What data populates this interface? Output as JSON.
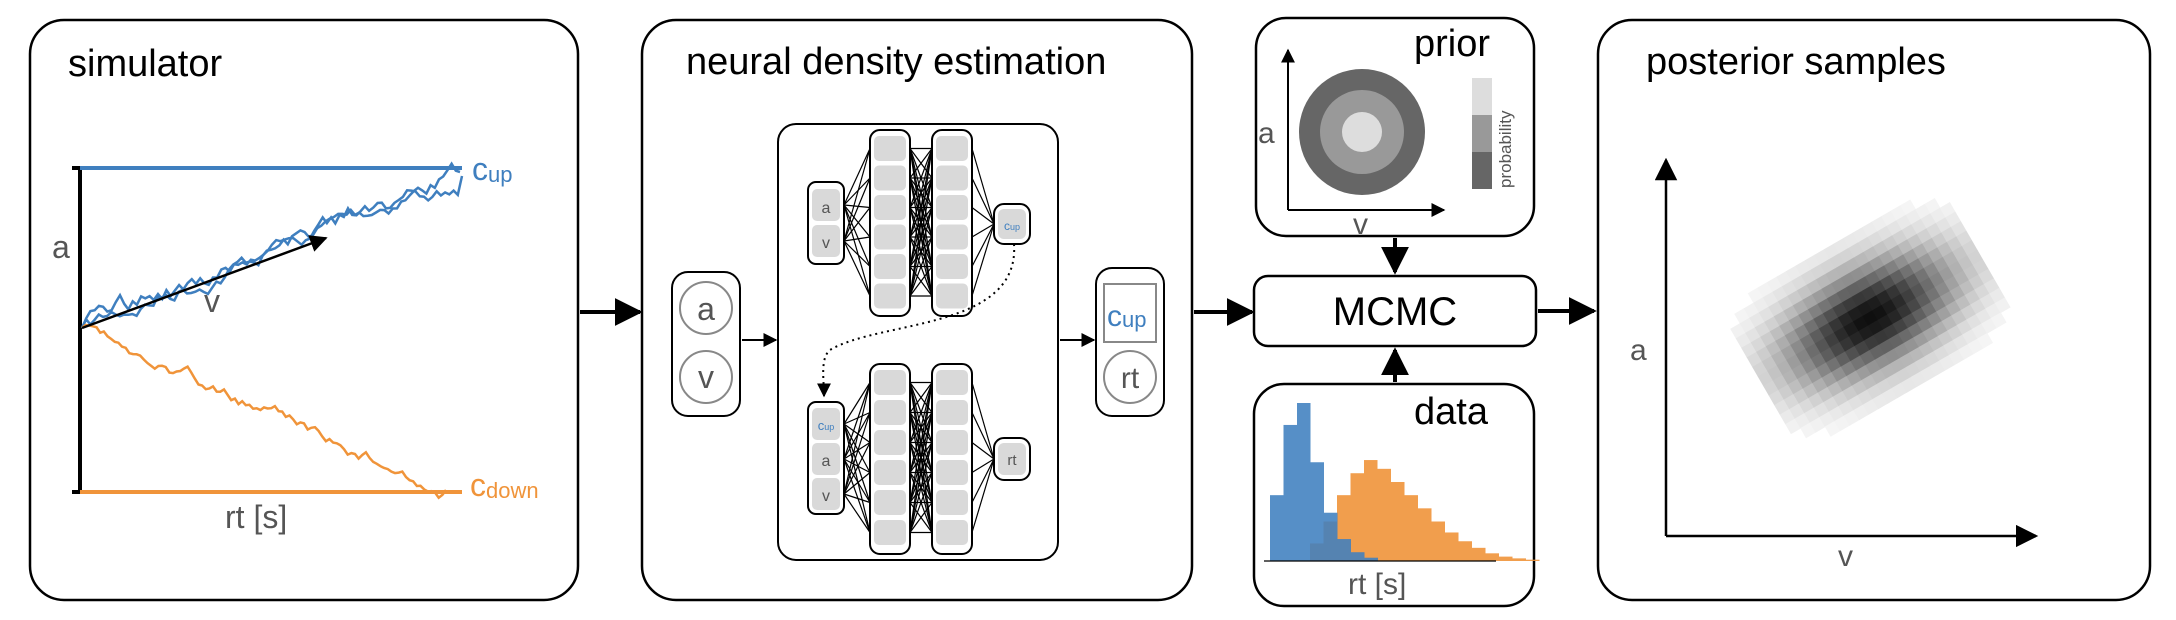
{
  "panels": {
    "simulator": {
      "title": "simulator",
      "label_a": "a",
      "label_v": "v",
      "label_rt": "rt [s]",
      "c_up": "c",
      "c_up_sub": "up",
      "c_down": "c",
      "c_down_sub": "down"
    },
    "nde": {
      "title": "neural density estimation",
      "in_a": "a",
      "in_v": "v",
      "net_a": "a",
      "net_v": "v",
      "net_cup": "c",
      "net_cup_sub": "up",
      "net2_cup": "c",
      "net2_cup_sub": "up",
      "net2_a": "a",
      "net2_v": "v",
      "net2_rt": "rt",
      "out_cup": "c",
      "out_cup_sub": "up",
      "out_rt": "rt"
    },
    "prior": {
      "title": "prior",
      "label_a": "a",
      "label_v": "v",
      "colorbar_label": "probability"
    },
    "mcmc": {
      "label": "MCMC"
    },
    "data": {
      "title": "data",
      "label_rt": "rt [s]"
    },
    "posterior": {
      "title": "posterior samples",
      "label_a": "a",
      "label_v": "v"
    }
  },
  "colors": {
    "blue": "#3f7fbf",
    "orange": "#f0943a",
    "gray_node": "#d9d9d9"
  },
  "data_hist": {
    "blue": [
      0.3,
      0.62,
      0.72,
      0.45,
      0.22,
      0.1,
      0.04,
      0.015
    ],
    "orange": [
      0.08,
      0.18,
      0.3,
      0.4,
      0.46,
      0.42,
      0.36,
      0.3,
      0.24,
      0.18,
      0.13,
      0.09,
      0.06,
      0.035,
      0.02,
      0.012,
      0.006
    ]
  }
}
